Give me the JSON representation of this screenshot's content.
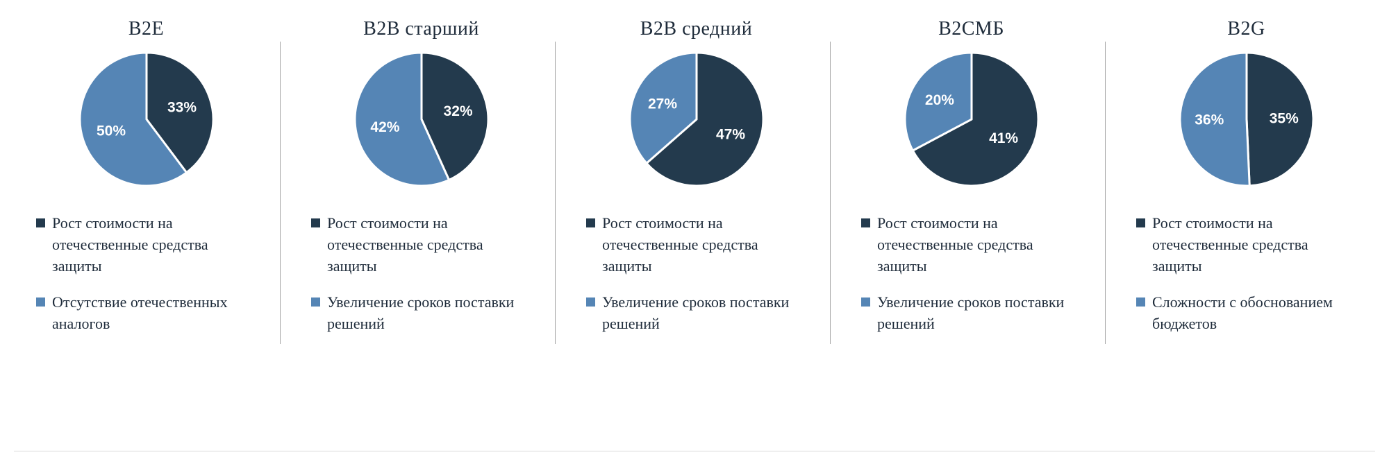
{
  "colors": {
    "dark": "#233a4d",
    "blue": "#5585b5",
    "divider": "#a6a6a6",
    "percent_label": "#ffffff",
    "text": "#1e2b3a",
    "background": "#ffffff"
  },
  "chart_data": [
    {
      "type": "pie",
      "title": "B2E",
      "legend_position": "bottom",
      "slices": [
        {
          "label": "Рост стоимости на отечественные средства защиты",
          "value": 33,
          "unit": "%",
          "color_key": "dark"
        },
        {
          "label": "Отсутствие отечественных аналогов",
          "value": 50,
          "unit": "%",
          "color_key": "blue"
        }
      ]
    },
    {
      "type": "pie",
      "title": "B2B старший",
      "legend_position": "bottom",
      "slices": [
        {
          "label": "Рост стоимости на отечественные средства защиты",
          "value": 32,
          "unit": "%",
          "color_key": "dark"
        },
        {
          "label": "Увеличение сроков поставки решений",
          "value": 42,
          "unit": "%",
          "color_key": "blue"
        }
      ]
    },
    {
      "type": "pie",
      "title": "B2B средний",
      "legend_position": "bottom",
      "slices": [
        {
          "label": "Рост стоимости на отечественные средства защиты",
          "value": 47,
          "unit": "%",
          "color_key": "dark"
        },
        {
          "label": "Увеличение сроков поставки решений",
          "value": 27,
          "unit": "%",
          "color_key": "blue"
        }
      ]
    },
    {
      "type": "pie",
      "title": "B2СМБ",
      "legend_position": "bottom",
      "slices": [
        {
          "label": "Рост стоимости на отечественные средства защиты",
          "value": 41,
          "unit": "%",
          "color_key": "dark"
        },
        {
          "label": "Увеличение сроков поставки решений",
          "value": 20,
          "unit": "%",
          "color_key": "blue"
        }
      ]
    },
    {
      "type": "pie",
      "title": "B2G",
      "legend_position": "bottom",
      "slices": [
        {
          "label": "Рост стоимости на отечественные средства защиты",
          "value": 35,
          "unit": "%",
          "color_key": "dark"
        },
        {
          "label": "Сложности с обоснованием бюджетов",
          "value": 36,
          "unit": "%",
          "color_key": "blue"
        }
      ]
    }
  ]
}
